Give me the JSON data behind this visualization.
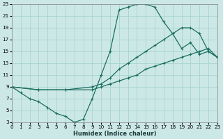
{
  "xlabel": "Humidex (Indice chaleur)",
  "bg_color": "#cce8e6",
  "grid_color": "#a8d4d0",
  "line_color": "#1a6e60",
  "xlim": [
    0,
    23
  ],
  "ylim": [
    3,
    23
  ],
  "xticks": [
    0,
    1,
    2,
    3,
    4,
    5,
    6,
    7,
    8,
    9,
    10,
    11,
    12,
    13,
    14,
    15,
    16,
    17,
    18,
    19,
    20,
    21,
    22,
    23
  ],
  "yticks": [
    3,
    5,
    7,
    9,
    11,
    13,
    15,
    17,
    19,
    21,
    23
  ],
  "curve1_x": [
    0,
    1,
    2,
    3,
    4,
    5,
    6,
    7,
    8,
    9,
    10,
    11,
    12,
    13,
    14,
    15,
    16,
    17,
    18,
    19,
    20,
    21,
    22,
    23
  ],
  "curve1_y": [
    9,
    8,
    7,
    6.5,
    5.5,
    4.5,
    4,
    3,
    3.5,
    7,
    11,
    15,
    22,
    22.5,
    23,
    23,
    22.5,
    20,
    18,
    15.5,
    16.5,
    14.5,
    15,
    14
  ],
  "curve2_x": [
    0,
    3,
    6,
    9,
    10,
    11,
    12,
    13,
    14,
    15,
    16,
    17,
    18,
    19,
    20,
    21,
    22,
    23
  ],
  "curve2_y": [
    9,
    8.5,
    8.5,
    9,
    9.5,
    10.5,
    12,
    13,
    14,
    15,
    16,
    17,
    18,
    19,
    19,
    18,
    15,
    14
  ],
  "curve3_x": [
    0,
    3,
    6,
    9,
    10,
    11,
    12,
    13,
    14,
    15,
    16,
    17,
    18,
    19,
    20,
    21,
    22,
    23
  ],
  "curve3_y": [
    9,
    8.5,
    8.5,
    8.5,
    9,
    9.5,
    10,
    10.5,
    11,
    12,
    12.5,
    13,
    13.5,
    14,
    14.5,
    15,
    15.5,
    14
  ]
}
